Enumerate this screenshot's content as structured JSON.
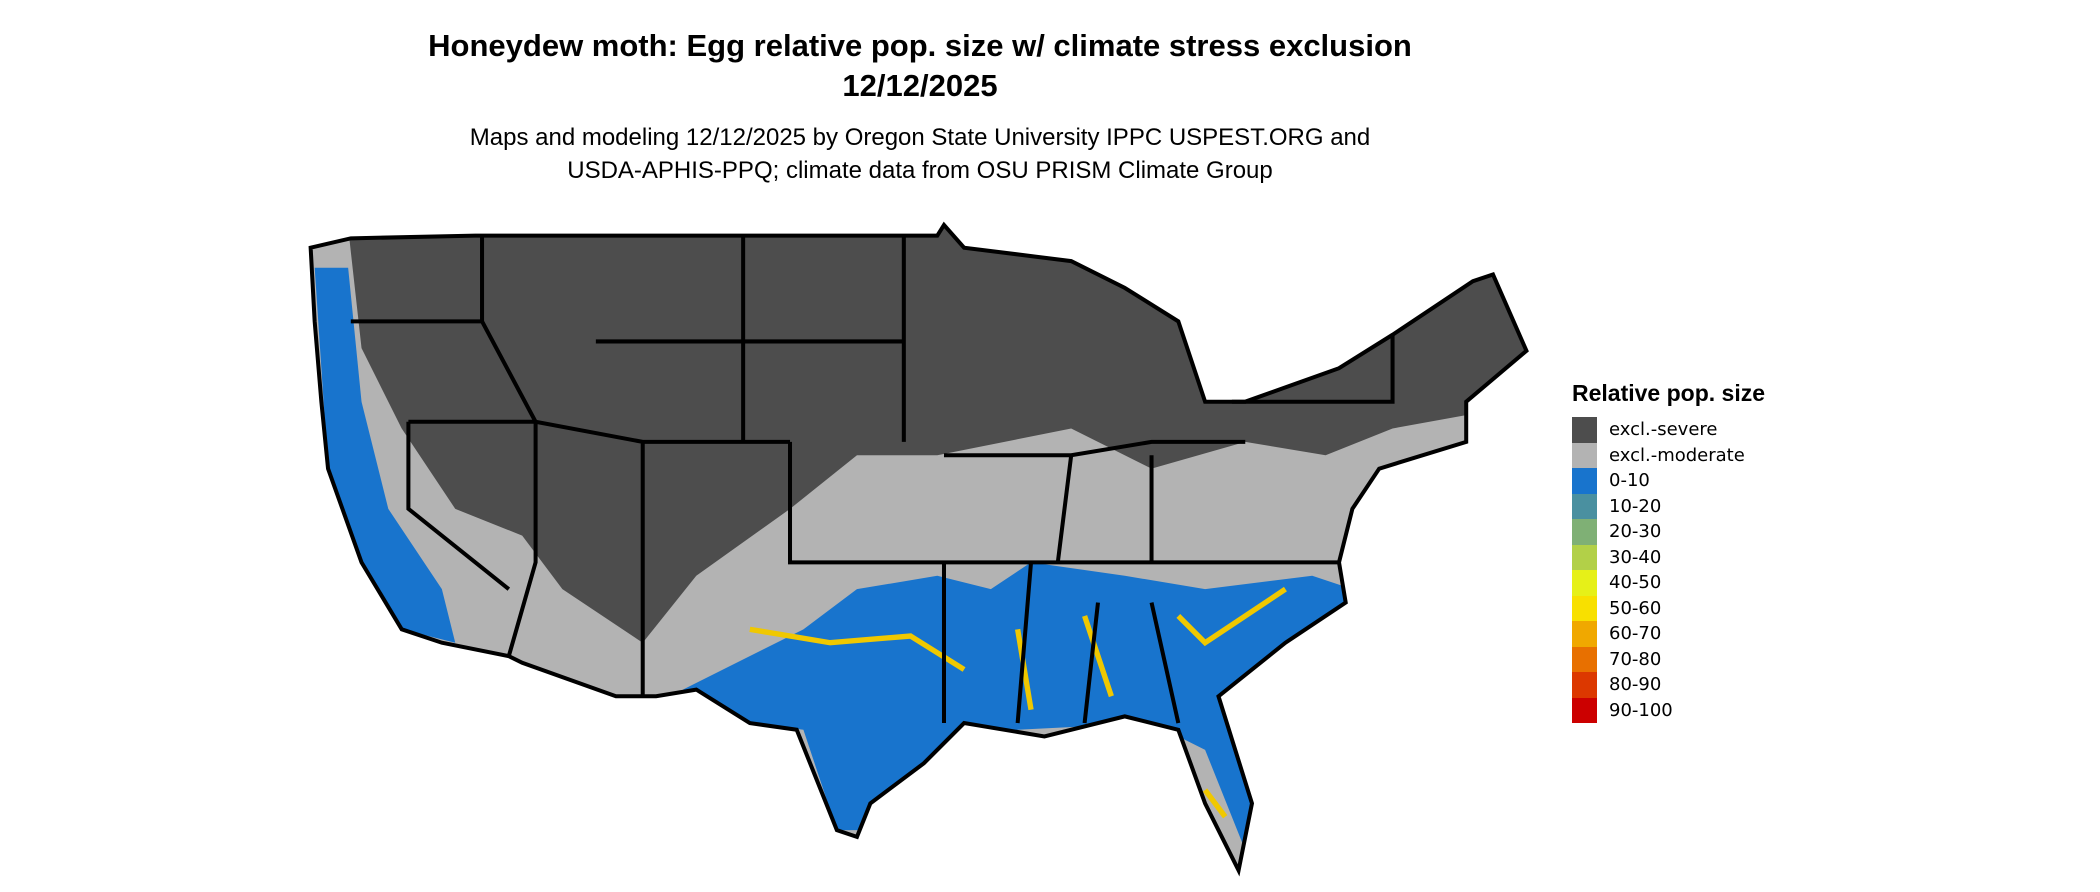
{
  "title_line1": "Honeydew moth: Egg relative pop. size w/ climate stress exclusion",
  "title_line2": "12/12/2025",
  "subtitle_line1": "Maps and modeling 12/12/2025 by Oregon State University IPPC USPEST.ORG and",
  "subtitle_line2": "USDA-APHIS-PPQ; climate data from OSU PRISM Climate Group",
  "legend": {
    "title": "Relative pop. size",
    "items": [
      {
        "label": "excl.-severe",
        "color": "#4d4d4d"
      },
      {
        "label": "excl.-moderate",
        "color": "#b3b3b3"
      },
      {
        "label": "0-10",
        "color": "#1874cd"
      },
      {
        "label": "10-20",
        "color": "#4a90a0"
      },
      {
        "label": "20-30",
        "color": "#7fb075"
      },
      {
        "label": "30-40",
        "color": "#b2d048"
      },
      {
        "label": "40-50",
        "color": "#e6f018"
      },
      {
        "label": "50-60",
        "color": "#f8e000"
      },
      {
        "label": "60-70",
        "color": "#f0a800"
      },
      {
        "label": "70-80",
        "color": "#e87000"
      },
      {
        "label": "80-90",
        "color": "#dc3800"
      },
      {
        "label": "90-100",
        "color": "#cc0000"
      }
    ]
  }
}
